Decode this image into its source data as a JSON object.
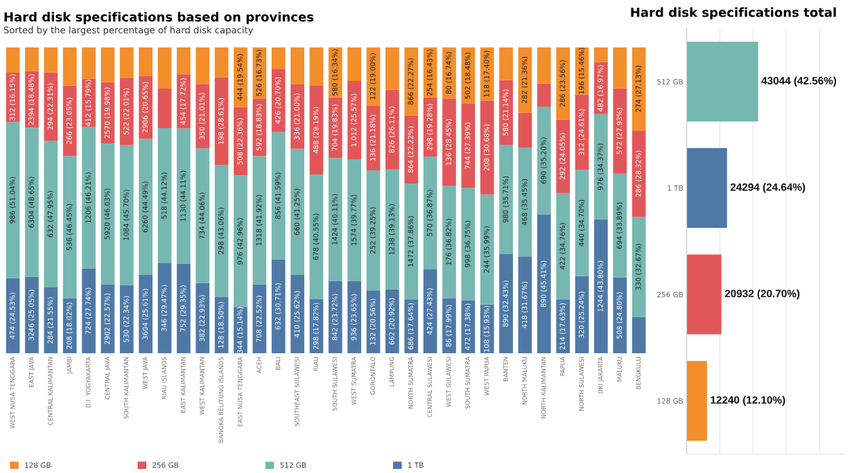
{
  "chart_data": [
    {
      "type": "bar",
      "stacked": true,
      "title": "Hard disk specifications based on provinces",
      "subtitle": "Sorted by the largest percentage of hard disk capacity",
      "categories": [
        "WEST NUSA TENGGARA",
        "EAST JAVA",
        "CENTRAL KALIMANTAN",
        "JAMBI",
        "D.I. YOGYAKARTA",
        "CENTRAL JAVA",
        "SOUTH KALIMANTAN",
        "WEST JAVA",
        "RIAU ISLANDS",
        "EAST KALIMANTAN",
        "WEST KALIMANTAN",
        "BANGKA BELITUNG ISLANDS",
        "EAST NUSA TENGGARA",
        "ACEH",
        "BALI",
        "SOUTHEAST SULAWESI",
        "RIAU",
        "SOUTH SULAWESI",
        "WEST SUMATRA",
        "GORONTALO",
        "LAMPUNG",
        "NORTH SUMATRA",
        "CENTRAL SULAWESI",
        "WEST SULAWESI",
        "SOUTH SUMATRA",
        "WEST PAPUA",
        "BANTEN",
        "NORTH MALUKU",
        "NORTH KALIMANTAN",
        "PAPUA",
        "NORTH SULAWESI",
        "DKI JAKARTA",
        "MALUKU",
        "BENGKULU"
      ],
      "series": [
        {
          "name": "1 TB",
          "color": "#4e79a7",
          "values": [
            24.53,
            25.05,
            21.55,
            18.02,
            27.74,
            22.57,
            22.34,
            25.61,
            29.47,
            29.35,
            22.93,
            18.5,
            15.14,
            22.52,
            30.71,
            25.62,
            17.82,
            23.72,
            23.65,
            20.56,
            20.92,
            17.64,
            27.43,
            17.99,
            17.38,
            15.93,
            32.43,
            31.67,
            45.41,
            17.63,
            25.24,
            43.8,
            24.8,
            11.88
          ],
          "value_labels": [
            "474 (24.53%)",
            "3246 (25.05%)",
            "284 (21.55%)",
            "208 (18.02%)",
            "724 (27.74%)",
            "2902 (22.57%)",
            "530 (22.34%)",
            "3604 (25.61%)",
            "346 (29.47%)",
            "752 (29.35%)",
            "382 (22.93%)",
            "128 (18.50%)",
            "344 (15.14%)",
            "708 (22.52%)",
            "632 (30.71%)",
            "410 (25.62%)",
            "298 (17.82%)",
            "842 (23.72%)",
            "936 (23.65%)",
            "132 (20.56%)",
            "662 (20.92%)",
            "686 (17.64%)",
            "424 (27.43%)",
            "86 (17.99%)",
            "472 (17.38%)",
            "108 (15.93%)",
            "890 (32.43%)",
            "418 (31.67%)",
            "890 (45.41%)",
            "214 (17.63%)",
            "320 (25.24%)",
            "1244 (43.80%)",
            "508 (24.80%)",
            null
          ]
        },
        {
          "name": "512 GB",
          "color": "#76b7b2",
          "values": [
            51.04,
            48.65,
            47.95,
            46.45,
            46.21,
            46.03,
            45.7,
            44.49,
            44.12,
            44.11,
            44.06,
            43.06,
            42.96,
            41.92,
            41.59,
            41.25,
            40.55,
            40.11,
            39.77,
            39.25,
            39.13,
            37.86,
            36.87,
            36.82,
            36.75,
            35.99,
            35.71,
            35.45,
            35.2,
            34.76,
            34.7,
            34.37,
            33.89,
            32.67
          ],
          "value_labels": [
            "986 (51.04%)",
            "6304 (48.65%)",
            "632 (47.95%)",
            "536 (46.45%)",
            "1206 (46.21%)",
            "5920 (46.03%)",
            "1084 (45.70%)",
            "6260 (44.49%)",
            "518 (44.12%)",
            "1130 (44.11%)",
            "734 (44.06%)",
            "298 (43.06%)",
            "976 (42.96%)",
            "1318 (41.92%)",
            "856 (41.59%)",
            "660 (41.25%)",
            "678 (40.55%)",
            "1424 (40.11%)",
            "1574 (39.77%)",
            "252 (39.25%)",
            "1238 (39.13%)",
            "1472 (37.86%)",
            "570 (36.87%)",
            "176 (36.82%)",
            "998 (36.75%)",
            "244 (35.99%)",
            "980 (35.71%)",
            "468 (35.45%)",
            "690 (35.20%)",
            "422 (34.76%)",
            "440 (34.70%)",
            "976 (34.37%)",
            "694 (33.89%)",
            "330 (32.67%)"
          ]
        },
        {
          "name": "256 GB",
          "color": "#e15759",
          "values": [
            16.15,
            18.48,
            22.31,
            23.05,
            15.79,
            19.98,
            22.01,
            20.65,
            12.91,
            17.72,
            21.01,
            28.61,
            22.36,
            18.83,
            20.7,
            21.0,
            29.19,
            19.83,
            25.57,
            21.18,
            26.11,
            22.22,
            19.28,
            28.45,
            27.39,
            30.68,
            21.14,
            11.52,
            7.59,
            24.05,
            24.61,
            16.97,
            27.93,
            28.32
          ],
          "value_labels": [
            "312 (16.15%)",
            "2394 (18.48%)",
            "294 (22.31%)",
            "266 (23.05%)",
            "412 (15.79%)",
            "2570 (19.98%)",
            "522 (22.01%)",
            "2906 (20.65%)",
            null,
            "454 (17.72%)",
            "350 (21.01%)",
            "198 (28.61%)",
            "508 (22.36%)",
            "592 (18.83%)",
            "426 (20.70%)",
            "336 (21.00%)",
            "488 (29.19%)",
            "704 (19.83%)",
            "1,012 (25.57%)",
            "136 (21.18%)",
            "826 (26.11%)",
            "864 (22.22%)",
            "298 (19.28%)",
            "136 (28.45%)",
            "744 (27.39%)",
            "208 (30.68%)",
            "580 (21.14%)",
            null,
            null,
            "292 (24.05%)",
            "312 (24.61%)",
            "482 (16.97%)",
            "572 (27.93%)",
            "286 (28.32%)"
          ]
        },
        {
          "name": "128 GB",
          "color": "#f28e2b",
          "values": [
            8.28,
            7.82,
            8.19,
            12.48,
            10.26,
            11.42,
            9.95,
            9.25,
            13.5,
            8.82,
            12.0,
            9.83,
            19.54,
            16.73,
            7.0,
            12.13,
            12.44,
            16.34,
            11.01,
            19.0,
            13.84,
            22.27,
            16.43,
            16.74,
            18.48,
            17.4,
            10.72,
            21.36,
            11.8,
            23.56,
            15.46,
            4.86,
            13.38,
            27.13
          ],
          "value_labels": [
            null,
            null,
            null,
            null,
            null,
            null,
            null,
            null,
            null,
            null,
            null,
            null,
            "444 (19.54%)",
            "526 (16.73%)",
            null,
            null,
            null,
            "580 (16.34%)",
            null,
            "122 (19.00%)",
            null,
            "866 (22.27%)",
            "254 (16.43%)",
            "80 (16.74%)",
            "502 (18.48%)",
            "118 (17.40%)",
            null,
            "282 (21.36%)",
            null,
            "286 (23.56%)",
            "196 (15.46%)",
            null,
            null,
            "274 (27.13%)"
          ]
        }
      ],
      "ylim": [
        0,
        100
      ],
      "tick_labels": "x",
      "legend": "bottom left",
      "grid": false
    },
    {
      "type": "bar",
      "orientation": "horizontal",
      "title": "Hard disk specifications total",
      "categories": [
        "512 GB",
        "1 TB",
        "256 GB",
        "128 GB"
      ],
      "values": [
        43044,
        24294,
        20932,
        12240
      ],
      "colors": [
        "#76b7b2",
        "#4e79a7",
        "#e15759",
        "#f28e2b"
      ],
      "value_labels": [
        "43044 (42.56%)",
        "24294 (24.64%)",
        "20932 (20.70%)",
        "12240 (12.10%)"
      ],
      "xlim": [
        0,
        95000
      ],
      "xticks": [
        {
          "value": 0,
          "label": null
        },
        {
          "value": 20000,
          "label": null
        },
        {
          "value": 40000,
          "label": null
        },
        {
          "value": 60000,
          "label": null
        },
        {
          "value": 80000,
          "label": null
        }
      ],
      "tick_labels": "y",
      "grid": "x"
    }
  ]
}
